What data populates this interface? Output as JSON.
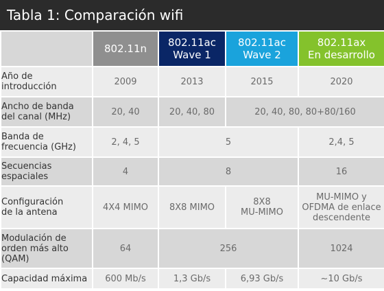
{
  "title": "Tabla 1: Comparación wifi",
  "headers": {
    "col1": [
      "802.11n"
    ],
    "col2": [
      "802.11ac",
      "Wave 1"
    ],
    "col3": [
      "802.11ac",
      "Wave 2"
    ],
    "col4": [
      "802.11ax",
      "En desarrollo"
    ]
  },
  "rows": [
    {
      "label": [
        "Año de",
        "introducción"
      ],
      "values": [
        "2009",
        "2013",
        "2015",
        "2020"
      ]
    },
    {
      "label": [
        "Ancho de banda",
        "del canal (MHz)"
      ],
      "values": [
        "20, 40",
        "20, 40, 80",
        "20, 40, 80, 80+80/160"
      ]
    },
    {
      "label": [
        "Banda de",
        "frecuencia (GHz)"
      ],
      "values": [
        "2, 4, 5",
        "5",
        "2,4, 5"
      ]
    },
    {
      "label": [
        "Secuencias",
        "espaciales"
      ],
      "values": [
        "4",
        "8",
        "16"
      ]
    },
    {
      "label": [
        "Configuración",
        "de la antena"
      ],
      "values": [
        [
          "4X4 MIMO"
        ],
        [
          "8X8 MIMO"
        ],
        [
          "8X8",
          "MU-MIMO"
        ],
        [
          "MU-MIMO y",
          "OFDMA de enlace",
          "descendente"
        ]
      ]
    },
    {
      "label": [
        "Modulación de",
        "orden más alto",
        "(QAM)"
      ],
      "values": [
        "64",
        "256",
        "1024"
      ]
    },
    {
      "label": [
        "Capacidad máxima"
      ],
      "values": [
        "600 Mb/s",
        "1,3 Gb/s",
        "6,93 Gb/s",
        "~10 Gb/s"
      ]
    }
  ]
}
